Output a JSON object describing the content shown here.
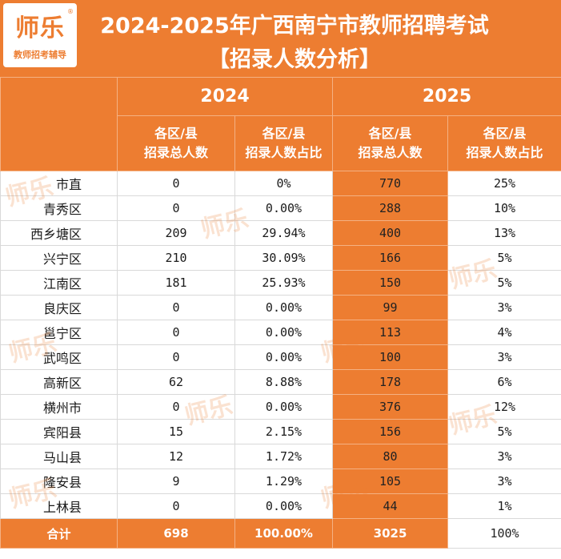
{
  "logo": {
    "name": "师乐",
    "registered": "®",
    "subtitle": "教师招考辅导"
  },
  "title": {
    "line1": "2024-2025年广西南宁市教师招聘考试",
    "line2": "【招录人数分析】"
  },
  "years": [
    "2024",
    "2025"
  ],
  "column_headers": [
    "各区/县\n招录总人数",
    "各区/县\n招录人数占比",
    "各区/县\n招录总人数",
    "各区/县\n招录人数占比"
  ],
  "rows": [
    {
      "name": "市直",
      "c2024": "0",
      "p2024": "0%",
      "c2025": "770",
      "p2025": "25%"
    },
    {
      "name": "青秀区",
      "c2024": "0",
      "p2024": "0.00%",
      "c2025": "288",
      "p2025": "10%"
    },
    {
      "name": "西乡塘区",
      "c2024": "209",
      "p2024": "29.94%",
      "c2025": "400",
      "p2025": "13%"
    },
    {
      "name": "兴宁区",
      "c2024": "210",
      "p2024": "30.09%",
      "c2025": "166",
      "p2025": "5%"
    },
    {
      "name": "江南区",
      "c2024": "181",
      "p2024": "25.93%",
      "c2025": "150",
      "p2025": "5%"
    },
    {
      "name": "良庆区",
      "c2024": "0",
      "p2024": "0.00%",
      "c2025": "99",
      "p2025": "3%"
    },
    {
      "name": "邕宁区",
      "c2024": "0",
      "p2024": "0.00%",
      "c2025": "113",
      "p2025": "4%"
    },
    {
      "name": "武鸣区",
      "c2024": "0",
      "p2024": "0.00%",
      "c2025": "100",
      "p2025": "3%"
    },
    {
      "name": "高新区",
      "c2024": "62",
      "p2024": "8.88%",
      "c2025": "178",
      "p2025": "6%"
    },
    {
      "name": "横州市",
      "c2024": "0",
      "p2024": "0.00%",
      "c2025": "376",
      "p2025": "12%"
    },
    {
      "name": "宾阳县",
      "c2024": "15",
      "p2024": "2.15%",
      "c2025": "156",
      "p2025": "5%"
    },
    {
      "name": "马山县",
      "c2024": "12",
      "p2024": "1.72%",
      "c2025": "80",
      "p2025": "3%"
    },
    {
      "name": "隆安县",
      "c2024": "9",
      "p2024": "1.29%",
      "c2025": "105",
      "p2025": "3%"
    },
    {
      "name": "上林县",
      "c2024": "0",
      "p2024": "0.00%",
      "c2025": "44",
      "p2025": "1%"
    }
  ],
  "total": {
    "name": "合计",
    "c2024": "698",
    "p2024": "100.00%",
    "c2025": "3025",
    "p2025": "100%"
  },
  "watermark": "师乐",
  "colors": {
    "accent": "#ed7d31",
    "border": "#d9d9d9"
  }
}
